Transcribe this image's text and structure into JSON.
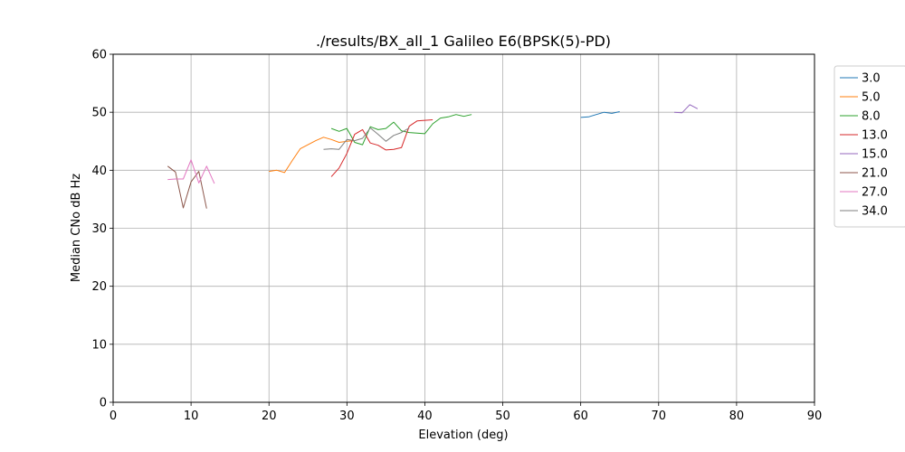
{
  "chart_data": {
    "type": "line",
    "title": "./results/BX_all_1 Galileo E6(BPSK(5)-PD)",
    "xlabel": "Elevation (deg)",
    "ylabel": "Median CNo dB Hz",
    "xlim": [
      0,
      90
    ],
    "ylim": [
      0,
      60
    ],
    "xticks": [
      0,
      10,
      20,
      30,
      40,
      50,
      60,
      70,
      80,
      90
    ],
    "yticks": [
      0,
      10,
      20,
      30,
      40,
      50,
      60
    ],
    "grid": true,
    "legend_position": "outside-top-right",
    "series": [
      {
        "name": "3.0",
        "color": "#1f77b4",
        "points": [
          [
            60,
            49.1
          ],
          [
            61,
            49.2
          ],
          [
            62,
            49.6
          ],
          [
            63,
            50.0
          ],
          [
            64,
            49.8
          ],
          [
            65,
            50.1
          ]
        ]
      },
      {
        "name": "5.0",
        "color": "#ff7f0e",
        "points": [
          [
            20,
            39.8
          ],
          [
            21,
            40.0
          ],
          [
            22,
            39.6
          ],
          [
            23,
            41.7
          ],
          [
            24,
            43.7
          ],
          [
            25,
            44.4
          ],
          [
            26,
            45.1
          ],
          [
            27,
            45.7
          ],
          [
            28,
            45.3
          ],
          [
            29,
            44.8
          ],
          [
            30,
            45.0
          ],
          [
            31,
            45.1
          ]
        ]
      },
      {
        "name": "8.0",
        "color": "#2ca02c",
        "points": [
          [
            28,
            47.2
          ],
          [
            29,
            46.7
          ],
          [
            30,
            47.2
          ],
          [
            31,
            44.8
          ],
          [
            32,
            44.4
          ],
          [
            33,
            47.5
          ],
          [
            34,
            47.0
          ],
          [
            35,
            47.2
          ],
          [
            36,
            48.3
          ],
          [
            37,
            46.8
          ],
          [
            38,
            46.5
          ],
          [
            39,
            46.4
          ],
          [
            40,
            46.3
          ],
          [
            41,
            48.0
          ],
          [
            42,
            49.0
          ],
          [
            43,
            49.2
          ],
          [
            44,
            49.6
          ],
          [
            45,
            49.3
          ],
          [
            46,
            49.6
          ]
        ]
      },
      {
        "name": "13.0",
        "color": "#d62728",
        "points": [
          [
            28,
            38.9
          ],
          [
            29,
            40.4
          ],
          [
            30,
            42.9
          ],
          [
            31,
            46.2
          ],
          [
            32,
            47.0
          ],
          [
            33,
            44.7
          ],
          [
            34,
            44.3
          ],
          [
            35,
            43.5
          ],
          [
            36,
            43.6
          ],
          [
            37,
            43.9
          ],
          [
            38,
            47.6
          ],
          [
            39,
            48.5
          ],
          [
            40,
            48.6
          ],
          [
            41,
            48.7
          ]
        ]
      },
      {
        "name": "15.0",
        "color": "#9467bd",
        "points": [
          [
            72,
            50.0
          ],
          [
            73,
            49.9
          ],
          [
            74,
            51.3
          ],
          [
            75,
            50.6
          ]
        ]
      },
      {
        "name": "21.0",
        "color": "#8c564b",
        "points": [
          [
            7,
            40.7
          ],
          [
            8,
            39.7
          ],
          [
            9,
            33.5
          ],
          [
            10,
            38.0
          ],
          [
            11,
            39.8
          ],
          [
            12,
            33.4
          ]
        ]
      },
      {
        "name": "27.0",
        "color": "#e377c2",
        "points": [
          [
            7,
            38.4
          ],
          [
            8,
            38.5
          ],
          [
            9,
            38.5
          ],
          [
            10,
            41.8
          ],
          [
            11,
            37.8
          ],
          [
            12,
            40.7
          ],
          [
            13,
            37.7
          ]
        ]
      },
      {
        "name": "34.0",
        "color": "#7f7f7f",
        "points": [
          [
            27,
            43.6
          ],
          [
            28,
            43.7
          ],
          [
            29,
            43.6
          ],
          [
            30,
            45.3
          ],
          [
            31,
            45.1
          ],
          [
            32,
            45.5
          ],
          [
            33,
            47.3
          ],
          [
            34,
            46.2
          ],
          [
            35,
            45.0
          ],
          [
            36,
            46.0
          ],
          [
            37,
            46.5
          ],
          [
            38,
            47.3
          ]
        ]
      }
    ]
  }
}
